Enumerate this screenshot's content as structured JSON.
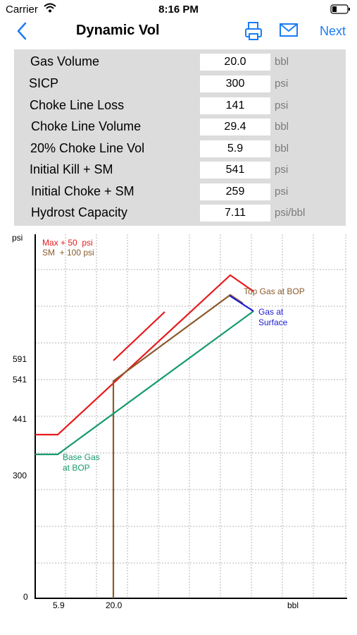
{
  "status": {
    "carrier": "Carrier",
    "time": "8:16 PM"
  },
  "nav": {
    "title": "Dynamic Vol",
    "next_label": "Next",
    "back_icon": "chevron-left-icon",
    "print_icon": "printer-icon",
    "mail_icon": "envelope-icon",
    "accent": "#1a7cf5"
  },
  "parameters": [
    {
      "label": "Gas Volume",
      "value": "20.0",
      "unit": "bbl"
    },
    {
      "label": "SICP",
      "value": "300",
      "unit": "psi"
    },
    {
      "label": "Choke Line Loss",
      "value": "141",
      "unit": "psi"
    },
    {
      "label": "Choke Line Volume",
      "value": "29.4",
      "unit": "bbl"
    },
    {
      "label": "20% Choke Line Vol",
      "value": "5.9",
      "unit": "bbl"
    },
    {
      "label": "Initial Kill + SM",
      "value": "541",
      "unit": "psi"
    },
    {
      "label": "Initial Choke + SM",
      "value": "259",
      "unit": "psi"
    },
    {
      "label": "Hydrost Capacity",
      "value": "7.11",
      "unit": "psi/bbl"
    }
  ],
  "chart_data": {
    "type": "line",
    "ylabel": "psi",
    "xlabel": "bbl",
    "y_ticks": [
      "591",
      "541",
      "441",
      "300",
      "0"
    ],
    "x_ticks": [
      "5.9",
      "20.0"
    ],
    "legend": [
      {
        "text": "Max + 50  psi",
        "color": "#e8191c"
      },
      {
        "text": "SM  + 100 psi",
        "color": "#8b5a2b"
      }
    ],
    "annotations": [
      {
        "text": "Top Gas at BOP",
        "color": "#8b5a2b"
      },
      {
        "text": "Gas at",
        "color": "#1c1cd6"
      },
      {
        "text": "Surface",
        "color": "#1c1cd6"
      },
      {
        "text": "Base Gas",
        "color": "#169b6b"
      },
      {
        "text": "at BOP",
        "color": "#169b6b"
      }
    ],
    "grid": true,
    "series_colors": {
      "red": "#e8191c",
      "brown": "#8b5a2b",
      "green": "#169b6b",
      "blue": "#1c1cd6"
    }
  }
}
